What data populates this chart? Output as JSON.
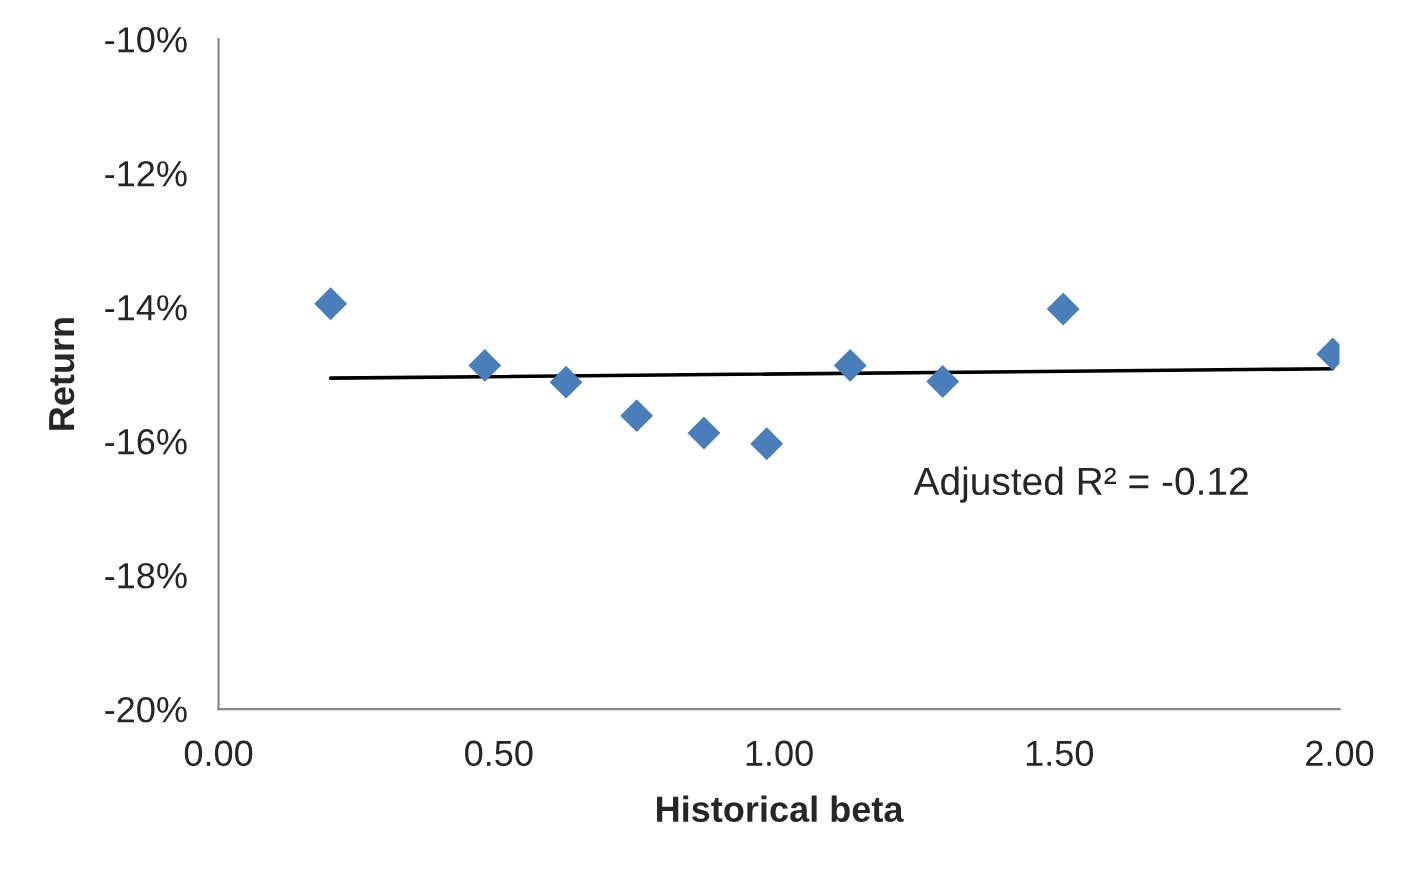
{
  "chart_data": {
    "type": "scatter",
    "xlabel": "Historical beta",
    "ylabel": "Return",
    "xlim": [
      0,
      2
    ],
    "xticks": [
      {
        "value": 0,
        "label": "0.00"
      },
      {
        "value": 0.5,
        "label": "0.50"
      },
      {
        "value": 1,
        "label": "1.00"
      },
      {
        "value": 1.5,
        "label": "1.50"
      },
      {
        "value": 2,
        "label": "2.00"
      }
    ],
    "ylim": [
      -20,
      -10
    ],
    "yticks": [
      {
        "value": -20,
        "label": "-20%"
      },
      {
        "value": -18,
        "label": "-18%"
      },
      {
        "value": -16,
        "label": "-16%"
      },
      {
        "value": -14,
        "label": "-14%"
      },
      {
        "value": -12,
        "label": "-12%"
      },
      {
        "value": -10,
        "label": "-10%"
      }
    ],
    "grid": false,
    "legend": false,
    "series": [
      {
        "marker": "diamond",
        "color": "#4a7ebb",
        "x": [
          0.2,
          0.475,
          0.62,
          0.746,
          0.866,
          0.978,
          1.127,
          1.292,
          1.507,
          1.988
        ],
        "values": [
          -13.95,
          -14.87,
          -15.12,
          -15.62,
          -15.88,
          -16.04,
          -14.87,
          -15.11,
          -14.03,
          -14.7
        ]
      },
      {
        "type": "line",
        "marker": "none",
        "color": "#000000",
        "x": [
          0.2,
          1.988
        ],
        "values": [
          -15.06,
          -14.92
        ]
      }
    ],
    "annotations": [
      "Adjusted R² = -0.12"
    ]
  }
}
